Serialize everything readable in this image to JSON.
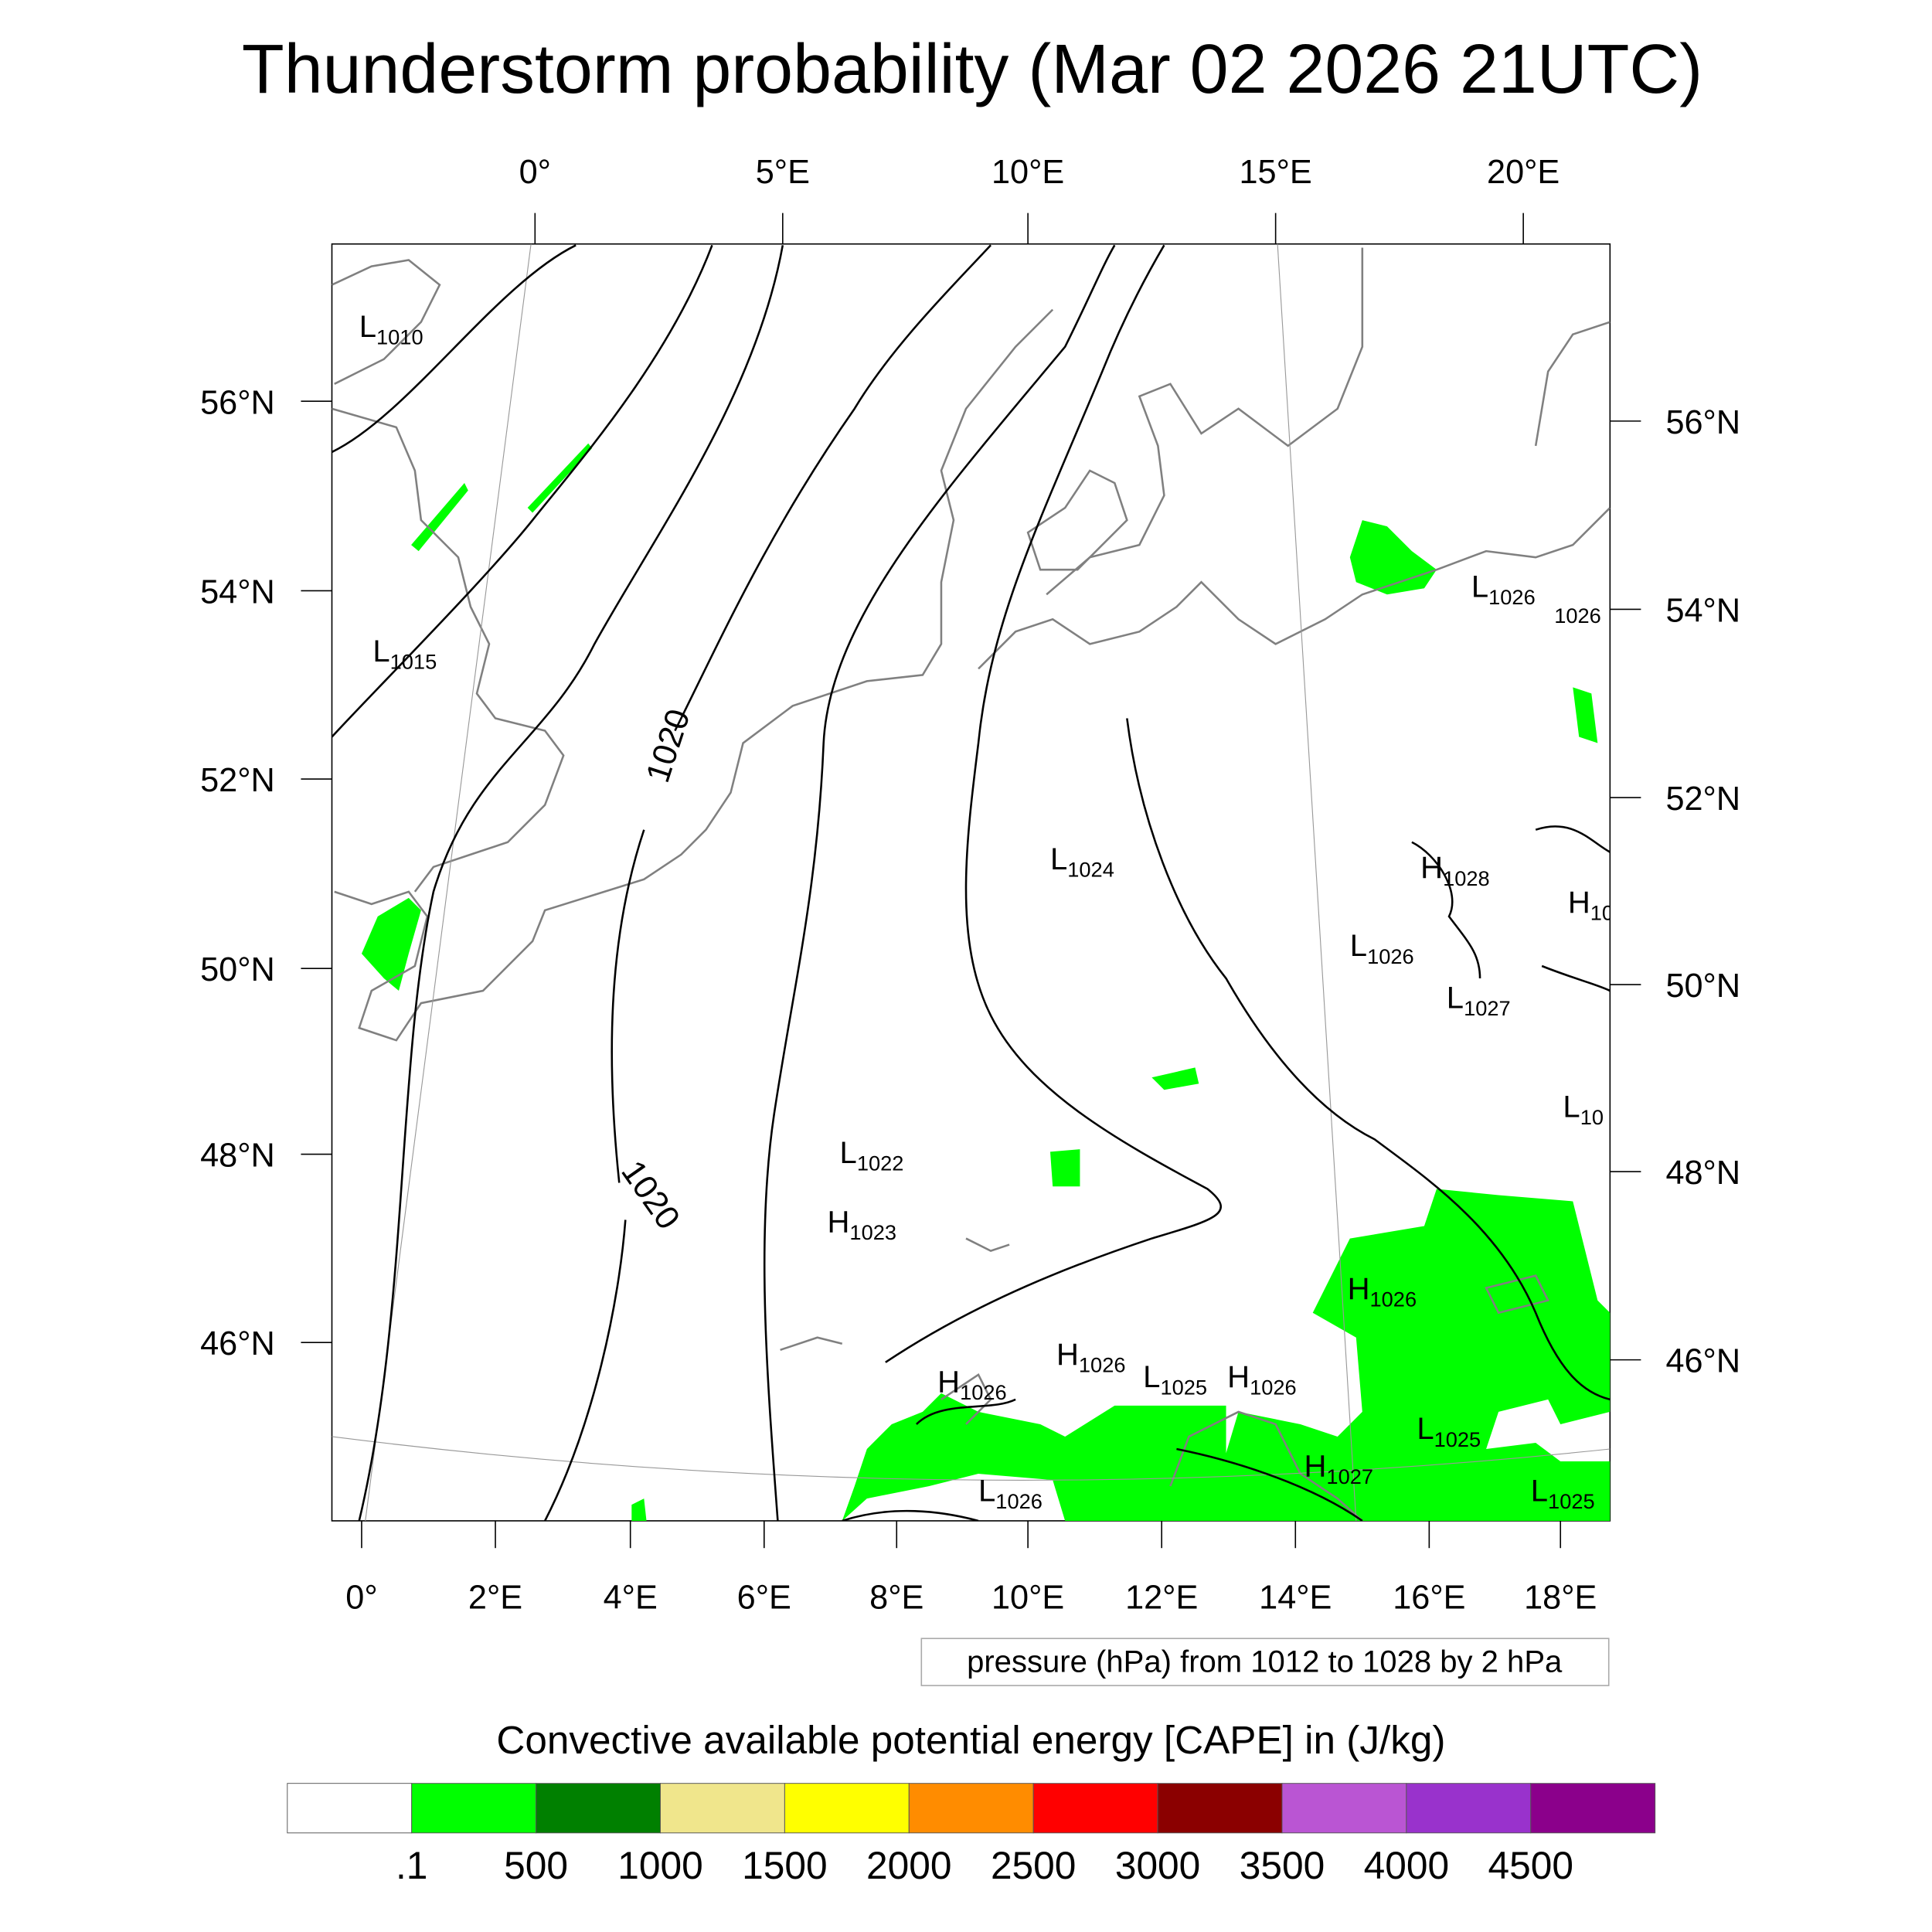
{
  "title": "Thunderstorm probability (Mar 02 2026 21UTC)",
  "top_lon_labels": [
    "0°",
    "5°E",
    "10°E",
    "15°E",
    "20°E"
  ],
  "left_lat_labels": [
    "56°N",
    "54°N",
    "52°N",
    "50°N",
    "48°N",
    "46°N"
  ],
  "right_lat_labels": [
    "56°N",
    "54°N",
    "52°N",
    "50°N",
    "48°N",
    "46°N"
  ],
  "bottom_lon_labels": [
    "0°",
    "2°E",
    "4°E",
    "6°E",
    "8°E",
    "10°E",
    "12°E",
    "14°E",
    "16°E",
    "18°E"
  ],
  "contour_labels": [
    "1020",
    "1020"
  ],
  "pressure_centers": [
    {
      "type": "L",
      "value": "1010"
    },
    {
      "type": "L",
      "value": "1015"
    },
    {
      "type": "L",
      "value": "1024"
    },
    {
      "type": "L",
      "value": "1022"
    },
    {
      "type": "H",
      "value": "1023"
    },
    {
      "type": "H",
      "value": "1028"
    },
    {
      "type": "H",
      "value": "10"
    },
    {
      "type": "L",
      "value": "1026"
    },
    {
      "type": "L",
      "value": "1027"
    },
    {
      "type": "L",
      "value": "1026"
    },
    {
      "type": "",
      "value": "1026"
    },
    {
      "type": "L",
      "value": "10"
    },
    {
      "type": "H",
      "value": "1026"
    },
    {
      "type": "H",
      "value": "1026"
    },
    {
      "type": "H",
      "value": "1026"
    },
    {
      "type": "L",
      "value": "1025"
    },
    {
      "type": "H",
      "value": "1026"
    },
    {
      "type": "L",
      "value": "1025"
    },
    {
      "type": "H",
      "value": "1027"
    },
    {
      "type": "L",
      "value": "1026"
    },
    {
      "type": "L",
      "value": "1025"
    }
  ],
  "contour_legend": "pressure (hPa) from 1012 to 1028 by 2 hPa",
  "colorbar": {
    "title": "Convective available potential energy [CAPE] in (J/kg)",
    "colors": [
      "#ffffff",
      "#00ff00",
      "#008000",
      "#f0e68c",
      "#ffff00",
      "#ff8c00",
      "#ff0000",
      "#8b0000",
      "#ba55d3",
      "#9932cc",
      "#8b008b"
    ],
    "labels": [
      ".1",
      "500",
      "1000",
      "1500",
      "2000",
      "2500",
      "3000",
      "3500",
      "4000",
      "4500"
    ]
  }
}
